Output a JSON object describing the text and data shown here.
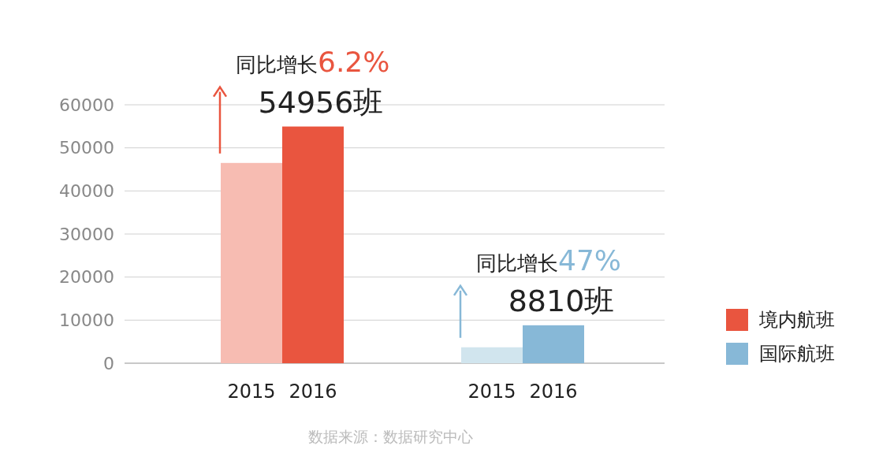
{
  "chart_data": {
    "type": "bar",
    "categories": [
      "2015",
      "2016",
      "2015",
      "2016"
    ],
    "series": [
      {
        "name": "境内航班",
        "color": "#e9553f",
        "colors": [
          "#f7bcb2",
          "#e9553f",
          null,
          null
        ],
        "values": [
          46500,
          54956,
          null,
          null
        ],
        "value_labels": [
          null,
          "54956班",
          null,
          null
        ]
      },
      {
        "name": "国际航班",
        "color": "#87b8d7",
        "colors": [
          null,
          null,
          "#d1e5ee",
          "#87b8d7"
        ],
        "values": [
          null,
          null,
          3700,
          8810
        ],
        "value_labels": [
          null,
          null,
          null,
          "8810班"
        ]
      }
    ],
    "ylim": [
      0,
      60000
    ],
    "yticks": [
      0,
      10000,
      20000,
      30000,
      40000,
      50000,
      60000
    ],
    "grid": "y",
    "legend": "right",
    "annotations": [
      "同比增长6.2%",
      "同比增长47%",
      "数据来源：数据研究中心"
    ]
  }
}
